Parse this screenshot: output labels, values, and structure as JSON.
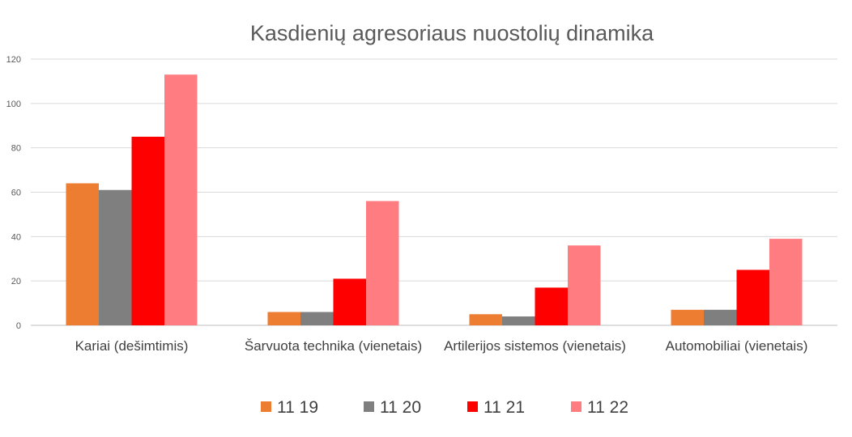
{
  "chart_data": {
    "type": "bar",
    "title": "Kasdienių agresoriaus nuostolių dinamika",
    "xlabel": "",
    "ylabel": "",
    "categories": [
      "Kariai (dešimtimis)",
      "Šarvuota technika (vienetais)",
      "Artilerijos sistemos (vienetais)",
      "Automobiliai (vienetais)"
    ],
    "series": [
      {
        "name": "11 19",
        "color": "#ED7D31",
        "values": [
          64,
          6,
          5,
          7
        ]
      },
      {
        "name": "11 20",
        "color": "#7F7F7F",
        "values": [
          61,
          6,
          4,
          7
        ]
      },
      {
        "name": "11 21",
        "color": "#FF0000",
        "values": [
          85,
          21,
          17,
          25
        ]
      },
      {
        "name": "11 22",
        "color": "#FF7C80",
        "values": [
          113,
          56,
          36,
          39
        ]
      }
    ],
    "ylim": [
      0,
      120
    ],
    "yticks": [
      0,
      20,
      40,
      60,
      80,
      100,
      120
    ],
    "grid": true,
    "legend_position": "bottom"
  }
}
